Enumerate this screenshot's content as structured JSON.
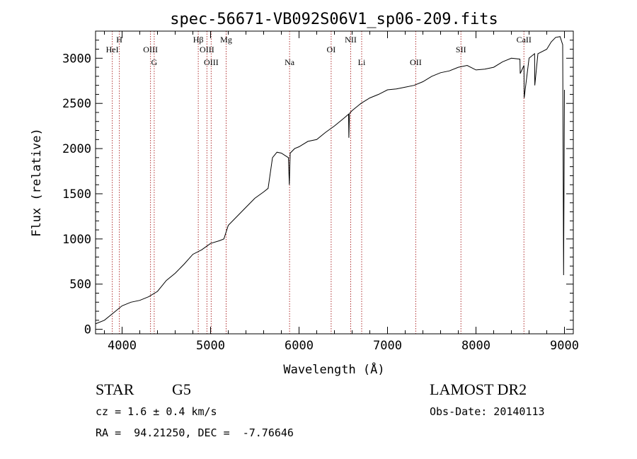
{
  "chart_data": {
    "type": "line",
    "title": "spec-56671-VB092S06V1_sp06-209.fits",
    "xlabel": "Wavelength (Å)",
    "ylabel": "Flux (relative)",
    "xlim": [
      3700,
      9100
    ],
    "ylim": [
      -50,
      3300
    ],
    "xticks": [
      4000,
      5000,
      6000,
      7000,
      8000,
      9000
    ],
    "yticks": [
      0,
      500,
      1000,
      1500,
      2000,
      2500,
      3000
    ],
    "series": [
      {
        "x": [
          3700,
          3800,
          3900,
          4000,
          4100,
          4200,
          4300,
          4400,
          4500,
          4600,
          4700,
          4800,
          4900,
          5000,
          5100,
          5150,
          5200,
          5300,
          5400,
          5500,
          5600,
          5650,
          5700,
          5750,
          5800,
          5880,
          5890,
          5900,
          5950,
          6000,
          6100,
          6200,
          6300,
          6400,
          6500,
          6560,
          6563,
          6570,
          6600,
          6700,
          6800,
          6900,
          7000,
          7100,
          7200,
          7300,
          7400,
          7500,
          7600,
          7700,
          7800,
          7900,
          8000,
          8100,
          8200,
          8300,
          8400,
          8497,
          8500,
          8542,
          8545,
          8600,
          8662,
          8665,
          8700,
          8800,
          8850,
          8900,
          8950,
          8980,
          8990,
          9000
        ],
        "y": [
          60,
          100,
          180,
          260,
          300,
          320,
          360,
          420,
          540,
          620,
          720,
          830,
          880,
          950,
          980,
          1000,
          1150,
          1250,
          1350,
          1450,
          1520,
          1560,
          1900,
          1960,
          1950,
          1900,
          1600,
          1950,
          2000,
          2020,
          2080,
          2100,
          2180,
          2250,
          2330,
          2380,
          2120,
          2390,
          2420,
          2500,
          2560,
          2600,
          2650,
          2660,
          2680,
          2700,
          2740,
          2800,
          2840,
          2860,
          2900,
          2920,
          2870,
          2880,
          2900,
          2960,
          3000,
          2990,
          2830,
          2920,
          2560,
          3000,
          3050,
          2700,
          3050,
          3100,
          3180,
          3230,
          3240,
          3150,
          600,
          2650
        ]
      }
    ],
    "lines": [
      {
        "name": "HeI",
        "x": 3889
      },
      {
        "name": "H",
        "x": 3969
      },
      {
        "name": "OIII",
        "x": 4321
      },
      {
        "name": "G",
        "x": 4363
      },
      {
        "name": "Hβ",
        "x": 4861
      },
      {
        "name": "OIII",
        "x": 4959
      },
      {
        "name": "OIII",
        "x": 5007
      },
      {
        "name": "Mg",
        "x": 5176
      },
      {
        "name": "Na",
        "x": 5893
      },
      {
        "name": "OI",
        "x": 6363
      },
      {
        "name": "NII",
        "x": 6584
      },
      {
        "name": "Li",
        "x": 6708
      },
      {
        "name": "OII",
        "x": 7319
      },
      {
        "name": "SII",
        "x": 7830
      },
      {
        "name": "CaII",
        "x": 8542
      }
    ]
  },
  "info": {
    "object_type": "STAR",
    "subclass": "G5",
    "survey": "LAMOST DR2",
    "cz": "cz = 1.6 ± 0.4 km/s",
    "obs_date": "Obs-Date: 20140113",
    "coords": "RA =  94.21250, DEC =  -7.76646"
  },
  "colors": {
    "spectrum": "#000000",
    "line_markers": "#b03030",
    "axes": "#000000"
  }
}
